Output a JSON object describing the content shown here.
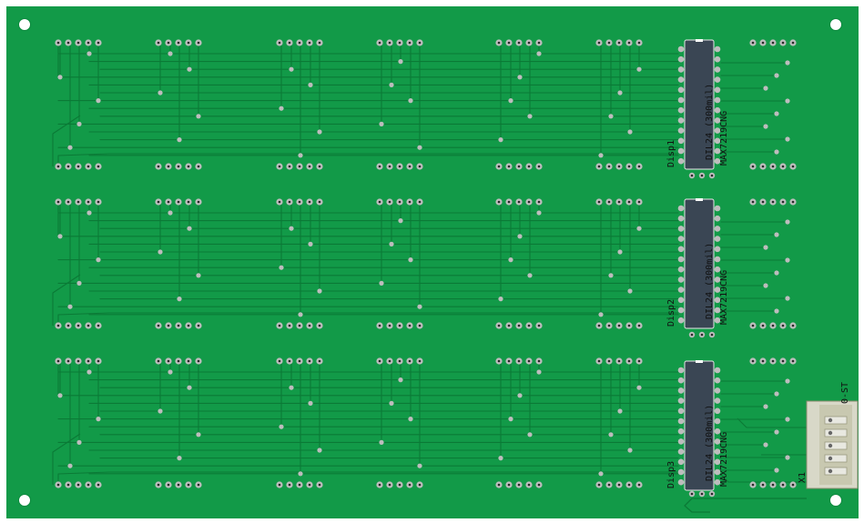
{
  "board": {
    "pcb_color": "#129a48",
    "trace_color": "#0b7a36",
    "pad_color": "#bdbdbd",
    "hole_color": "#2a2a2a",
    "silk_color": "#111111",
    "ic_body_color": "#3a4654"
  },
  "icons": {
    "mounting_hole": "mounting-hole-icon",
    "pad": "through-hole-pad-icon",
    "ic": "dip-ic-icon",
    "connector": "pin-header-icon"
  },
  "drivers": [
    {
      "ref": "Disp1",
      "package": "DIL24 (300mil)",
      "part": "MAX7219CNG"
    },
    {
      "ref": "Disp2",
      "package": "DIL24 (300mil)",
      "part": "MAX7219CNG"
    },
    {
      "ref": "Disp3",
      "package": "DIL24 (300mil)",
      "part": "MAX7219CNG"
    }
  ],
  "connector": {
    "ref": "X1",
    "part": "0-ST"
  },
  "display_columns": 7,
  "display_rows": 3
}
